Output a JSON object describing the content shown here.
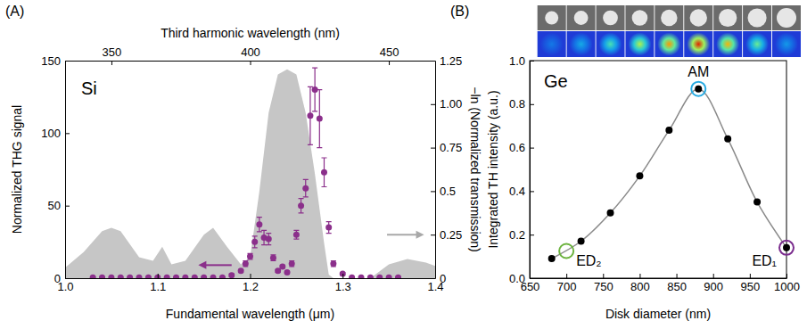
{
  "chart_data": [
    {
      "type": "scatter",
      "panel_label": "(A)",
      "title": "Si",
      "x_label": "Fundamental wavelength (μm)",
      "x2_label": "Third harmonic wavelength (nm)",
      "y_label": "Normalized THG signal",
      "y2_label": "−ln (Normalized transmission)",
      "xlim": [
        1.0,
        1.4
      ],
      "xticks": [
        {
          "value": 1.0,
          "label": "1.0"
        },
        1.1,
        1.2,
        1.3,
        1.4
      ],
      "x2lim": [
        333.3,
        466.7
      ],
      "x2ticks": [
        350,
        400,
        450
      ],
      "ylim": [
        0,
        150
      ],
      "yticks": [
        0,
        50,
        100,
        150
      ],
      "y2lim": [
        0,
        1.25
      ],
      "y2ticks": [
        0,
        0.25,
        0.5,
        0.75,
        {
          "value": 1.0,
          "label": "1.00"
        },
        1.25
      ],
      "series": [
        {
          "type": "area",
          "axis": "y2",
          "color": "#c6c6c6",
          "x": [
            1.0,
            1.02,
            1.04,
            1.05,
            1.06,
            1.08,
            1.095,
            1.105,
            1.115,
            1.13,
            1.15,
            1.16,
            1.175,
            1.19,
            1.2,
            1.21,
            1.22,
            1.23,
            1.24,
            1.25,
            1.26,
            1.27,
            1.28,
            1.285,
            1.29,
            1.33,
            1.35,
            1.37,
            1.39,
            1.4
          ],
          "values": [
            0.06,
            0.15,
            0.27,
            0.29,
            0.27,
            0.12,
            0.1,
            0.18,
            0.08,
            0.1,
            0.25,
            0.29,
            0.18,
            0.08,
            0.12,
            0.5,
            0.95,
            1.17,
            1.2,
            1.17,
            0.95,
            0.6,
            0.2,
            0.02,
            0,
            0,
            0.08,
            0.11,
            0.09,
            0.07
          ]
        },
        {
          "type": "scatter",
          "color": "#8b2f8b",
          "marker": "circle",
          "x": [
            1.03,
            1.04,
            1.05,
            1.06,
            1.07,
            1.08,
            1.09,
            1.1,
            1.11,
            1.12,
            1.13,
            1.14,
            1.15,
            1.16,
            1.17,
            1.18,
            1.19,
            1.195,
            1.2,
            1.205,
            1.21,
            1.215,
            1.22,
            1.225,
            1.23,
            1.235,
            1.24,
            1.245,
            1.25,
            1.255,
            1.26,
            1.265,
            1.27,
            1.275,
            1.28,
            1.285,
            1.29,
            1.3,
            1.31,
            1.32,
            1.33,
            1.34,
            1.35,
            1.36
          ],
          "values": [
            0.5,
            0.5,
            0.5,
            0.5,
            0.5,
            0.5,
            0.5,
            0.5,
            0.5,
            0.5,
            0.5,
            0.5,
            0.5,
            0.5,
            0.5,
            2,
            5,
            10,
            15,
            25,
            37,
            28,
            27,
            14,
            5,
            8,
            4,
            10,
            30,
            50,
            62,
            112,
            130,
            110,
            73,
            35,
            10,
            3,
            0.5,
            0.5,
            0.5,
            0.5,
            0.5,
            0.5
          ],
          "errors": [
            0.5,
            0.5,
            0.5,
            0.5,
            0.5,
            0.5,
            0.5,
            0.5,
            0.5,
            0.5,
            0.5,
            0.5,
            0.5,
            0.5,
            0.5,
            1,
            1,
            2,
            2,
            4,
            5,
            5,
            4,
            2,
            1,
            1,
            1,
            2,
            3,
            5,
            6,
            20,
            15,
            20,
            10,
            4,
            2,
            1,
            0.5,
            0.5,
            0.5,
            0.5,
            0.5,
            0.5
          ]
        }
      ]
    },
    {
      "type": "line",
      "panel_label": "(B)",
      "title": "Ge",
      "x_label": "Disk diameter (nm)",
      "y_label": "Integrated TH intensity (a.u.)",
      "xlim": [
        650,
        1000
      ],
      "xticks": [
        650,
        700,
        750,
        800,
        850,
        900,
        950,
        1000
      ],
      "ylim": [
        0,
        1.0
      ],
      "yticks": [
        {
          "value": 0,
          "label": "0.0"
        },
        0.2,
        0.4,
        0.6,
        0.8,
        {
          "value": 1.0,
          "label": "1.0"
        }
      ],
      "series": [
        {
          "type": "line",
          "color": "#000000",
          "marker": "circle",
          "line_style": "solid",
          "x": [
            680,
            720,
            760,
            800,
            840,
            880,
            920,
            960,
            1000
          ],
          "values": [
            0.09,
            0.17,
            0.3,
            0.47,
            0.68,
            0.87,
            0.64,
            0.35,
            0.14
          ]
        }
      ],
      "annotations": [
        {
          "text": "AM",
          "x": 880,
          "y": 0.87,
          "color": "#29abe2"
        },
        {
          "text": "ED₂",
          "x": 700,
          "y": 0.125,
          "color": "#6cb33f"
        },
        {
          "text": "ED₁",
          "x": 1000,
          "y": 0.14,
          "color": "#7b2d8e"
        }
      ]
    }
  ]
}
